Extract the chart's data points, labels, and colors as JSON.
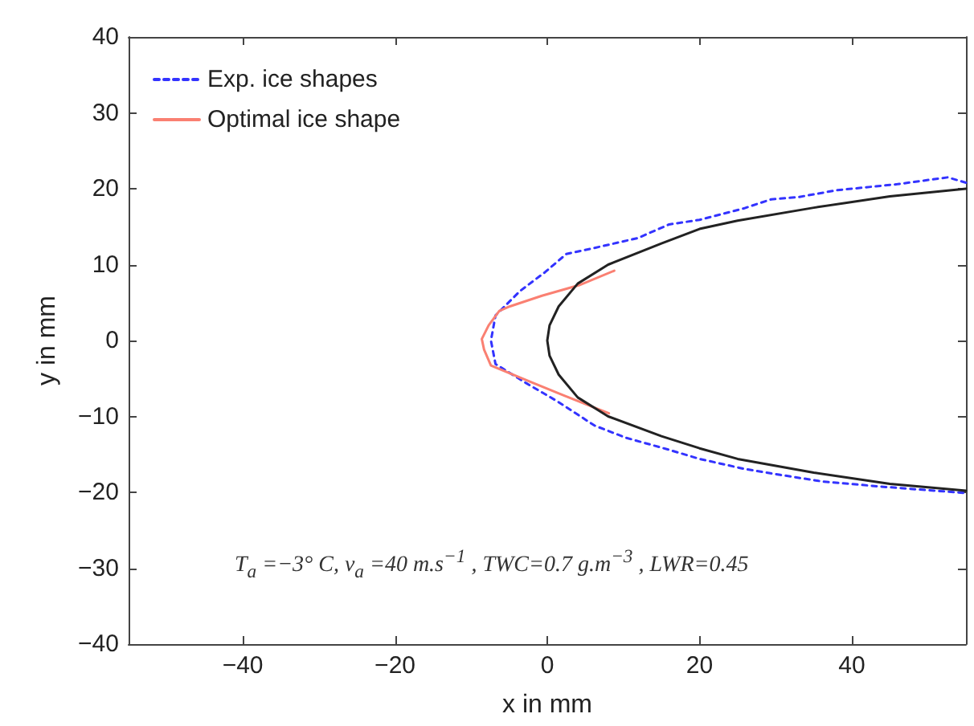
{
  "chart_data": {
    "type": "line",
    "xlabel": "x in mm",
    "ylabel": "y in mm",
    "xlim": [
      -55,
      55
    ],
    "xticks": [
      -40,
      -20,
      0,
      20,
      40
    ],
    "ylim": [
      -40,
      40
    ],
    "yticks": [
      -40,
      -30,
      -20,
      -10,
      0,
      10,
      20,
      30,
      40
    ],
    "grid": false,
    "legend": "top left",
    "marker": "none",
    "series": [
      {
        "name": "Exp. ice shapes",
        "color": "#3333ff",
        "line_style": "dashed",
        "x": [
          55,
          52.6,
          46,
          38,
          33,
          29.4,
          25.8,
          20,
          16,
          11.9,
          6.2,
          2.5,
          -0.3,
          -3.6,
          -6.8,
          -7.4,
          -6.8,
          -2.8,
          1.3,
          6.2,
          10.3,
          16,
          20,
          25.8,
          30.6,
          36.3,
          44.5,
          55
        ],
        "values": [
          20.8,
          21.5,
          20.6,
          19.8,
          18.9,
          18.6,
          17.4,
          15.9,
          15.3,
          13.5,
          12.2,
          11.4,
          9.0,
          6.5,
          3.3,
          0,
          -3.1,
          -5.6,
          -8.0,
          -11.2,
          -12.8,
          -14.4,
          -15.6,
          -16.9,
          -17.7,
          -18.6,
          -19.3,
          -20.1
        ]
      },
      {
        "name": "Optimal ice shape",
        "color": "#fa8072",
        "line_style": "solid",
        "x": [
          8.8,
          4.2,
          -0.7,
          -4.9,
          -6.3,
          -7.7,
          -8.6,
          -8.3,
          -7.4,
          -2.1,
          2.1,
          8.1
        ],
        "values": [
          9.2,
          7.3,
          5.9,
          4.5,
          3.9,
          2.0,
          0.2,
          -1.2,
          -3.3,
          -5.5,
          -7.2,
          -9.6
        ]
      },
      {
        "color": "#222222",
        "line_style": "solid",
        "x": [
          55,
          45,
          35,
          25,
          20,
          15,
          8,
          4,
          1.5,
          0.3,
          0,
          0.3,
          1.5,
          4,
          8,
          15,
          20,
          25,
          35,
          45,
          55
        ],
        "values": [
          20,
          19,
          17.5,
          15.8,
          14.7,
          12.8,
          10,
          7.5,
          4.5,
          2,
          0,
          -2,
          -4.5,
          -7.5,
          -10,
          -12.6,
          -14.2,
          -15.6,
          -17.4,
          -18.9,
          -19.8
        ]
      }
    ],
    "annotations": [
      "T$_{a}$ =−3° C, v$_{a}$ =40 m.s$^{−1}$ , TWC=0.7 g.m$^{−3}$ , LWR=0.45"
    ]
  }
}
